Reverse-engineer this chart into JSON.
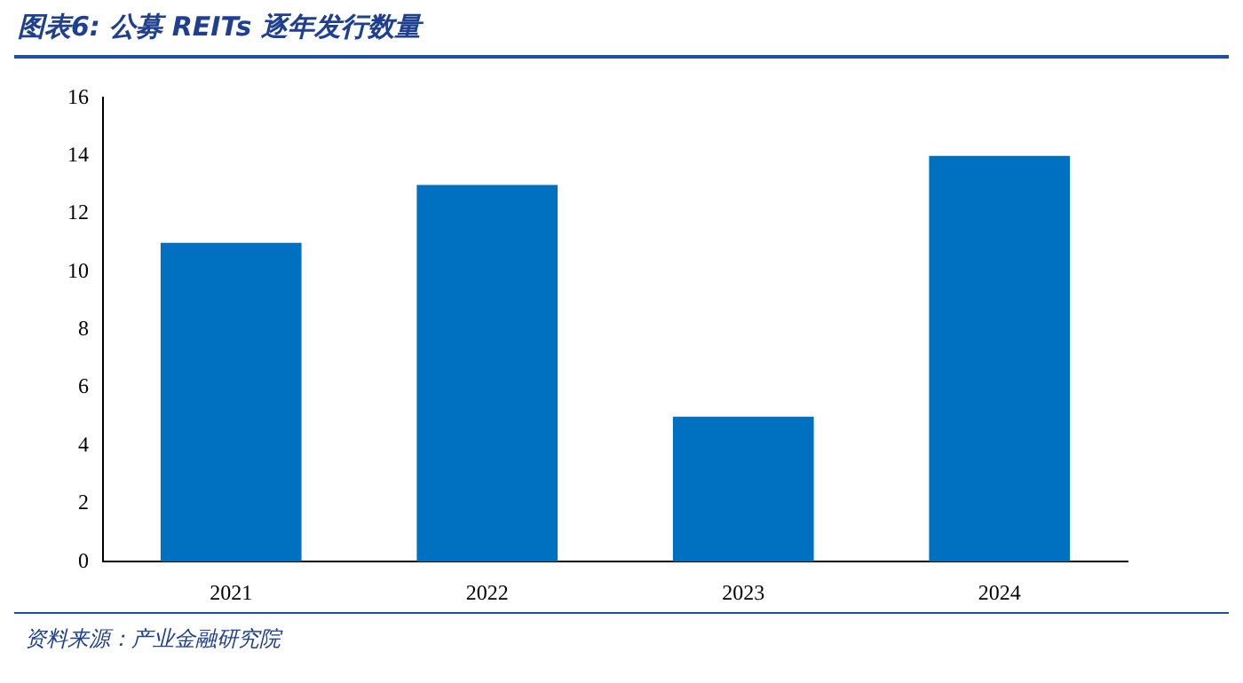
{
  "chart_data": {
    "type": "bar",
    "title": "图表6:  公募 REITs 逐年发行数量",
    "categories": [
      "2021",
      "2022",
      "2023",
      "2024"
    ],
    "values": [
      11,
      13,
      5,
      14
    ],
    "color": "#0070c0",
    "ylim": [
      0,
      16
    ],
    "yticks": [
      0,
      2,
      4,
      6,
      8,
      10,
      12,
      14,
      16
    ],
    "grid": false,
    "legend": false,
    "annotations": [
      "资料来源：产业金融研究院"
    ]
  }
}
